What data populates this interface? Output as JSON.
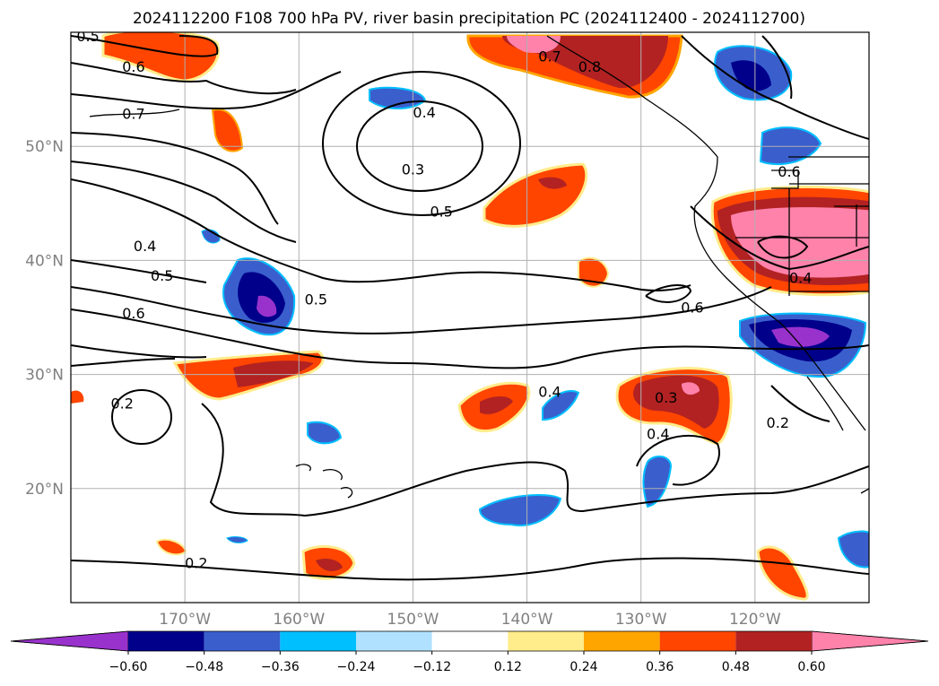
{
  "title": "2024112200 F108 700 hPa PV, river basin precipitation PC (2024112400 - 2024112700)",
  "map": {
    "lon_range": [
      -180,
      -110
    ],
    "lat_range": [
      10,
      60
    ],
    "lat_ticks": [
      {
        "value": 50,
        "label": "50°N"
      },
      {
        "value": 40,
        "label": "40°N"
      },
      {
        "value": 30,
        "label": "30°N"
      },
      {
        "value": 20,
        "label": "20°N"
      }
    ],
    "lon_ticks": [
      {
        "value": -170,
        "label": "170°W"
      },
      {
        "value": -160,
        "label": "160°W"
      },
      {
        "value": -150,
        "label": "150°W"
      },
      {
        "value": -140,
        "label": "140°W"
      },
      {
        "value": -130,
        "label": "130°W"
      },
      {
        "value": -120,
        "label": "120°W"
      }
    ],
    "grid": true,
    "pv_contour_labels": [
      {
        "text": "0.5",
        "lon": -178.5,
        "lat": 59.7
      },
      {
        "text": "0.6",
        "lon": -174.5,
        "lat": 57.0
      },
      {
        "text": "0.7",
        "lon": -174.5,
        "lat": 52.9
      },
      {
        "text": "0.4",
        "lon": -149.0,
        "lat": 53.0
      },
      {
        "text": "0.3",
        "lon": -150.0,
        "lat": 48.0
      },
      {
        "text": "0.5",
        "lon": -147.5,
        "lat": 44.3
      },
      {
        "text": "0.4",
        "lon": -173.5,
        "lat": 41.3
      },
      {
        "text": "0.5",
        "lon": -172.0,
        "lat": 38.7
      },
      {
        "text": "0.6",
        "lon": -174.5,
        "lat": 35.4
      },
      {
        "text": "0.5",
        "lon": -158.5,
        "lat": 36.6
      },
      {
        "text": "0.7",
        "lon": -138.0,
        "lat": 57.9
      },
      {
        "text": "0.8",
        "lon": -134.5,
        "lat": 57.0
      },
      {
        "text": "0.6",
        "lon": -125.5,
        "lat": 35.9
      },
      {
        "text": "0.6",
        "lon": -117.0,
        "lat": 47.8
      },
      {
        "text": "0.4",
        "lon": -116.0,
        "lat": 38.5
      },
      {
        "text": "0.4",
        "lon": -138.0,
        "lat": 28.5
      },
      {
        "text": "0.3",
        "lon": -127.8,
        "lat": 28.0
      },
      {
        "text": "0.4",
        "lon": -128.5,
        "lat": 24.8
      },
      {
        "text": "0.2",
        "lon": -175.5,
        "lat": 27.5
      },
      {
        "text": "0.2",
        "lon": -118.0,
        "lat": 25.8
      },
      {
        "text": "0.2",
        "lon": -169.0,
        "lat": 13.5
      }
    ]
  },
  "colorbar": {
    "labels": [
      "−0.60",
      "−0.48",
      "−0.36",
      "−0.24",
      "−0.12",
      "0.12",
      "0.24",
      "0.36",
      "0.48",
      "0.60"
    ],
    "colors": [
      "#9932cc",
      "#00008b",
      "#3a5fcd",
      "#00bfff",
      "#b0e2ff",
      "#ffffff",
      "#ffec8b",
      "#ffa500",
      "#ff4500",
      "#b22222",
      "#ff82ab"
    ],
    "extend": "both"
  }
}
